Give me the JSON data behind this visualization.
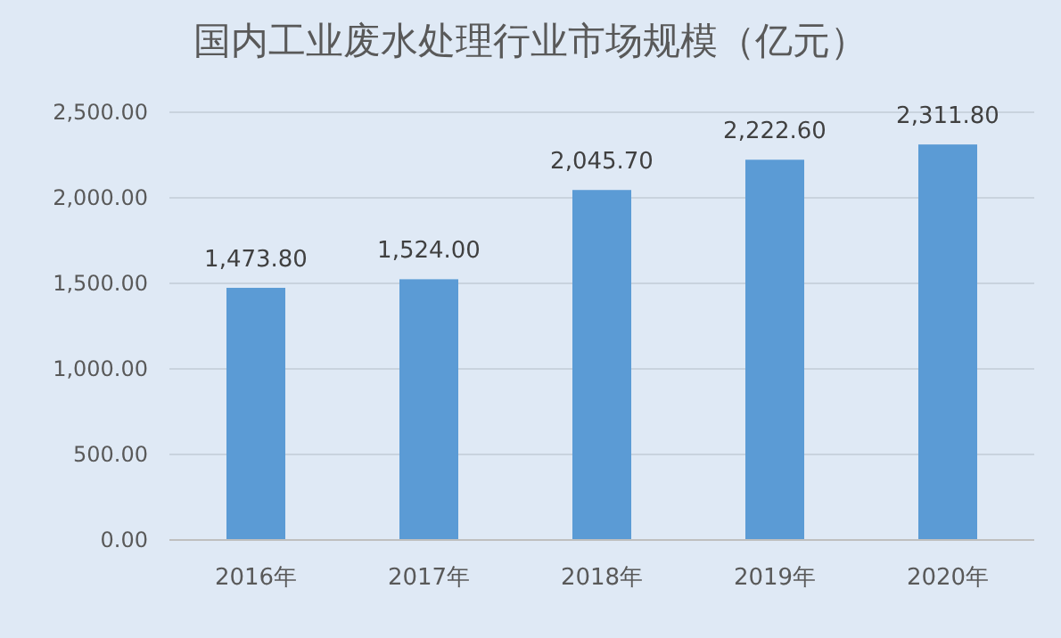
{
  "chart_data": {
    "type": "bar",
    "title": "国内工业废水处理行业市场规模（亿元）",
    "categories": [
      "2016年",
      "2017年",
      "2018年",
      "2019年",
      "2020年"
    ],
    "values": [
      1473.8,
      1524.0,
      2045.7,
      2222.6,
      2311.8
    ],
    "value_labels": [
      "1,473.80",
      "1,524.00",
      "2,045.70",
      "2,222.60",
      "2,311.80"
    ],
    "color": "#5b9bd5",
    "ylim": [
      0,
      2500
    ],
    "yticks": [
      {
        "value": 0,
        "label": "0.00"
      },
      {
        "value": 500,
        "label": "500.00"
      },
      {
        "value": 1000,
        "label": "1,000.00"
      },
      {
        "value": 1500,
        "label": "1,500.00"
      },
      {
        "value": 2000,
        "label": "2,000.00"
      },
      {
        "value": 2500,
        "label": "2,500.00"
      }
    ],
    "grid": "y"
  }
}
